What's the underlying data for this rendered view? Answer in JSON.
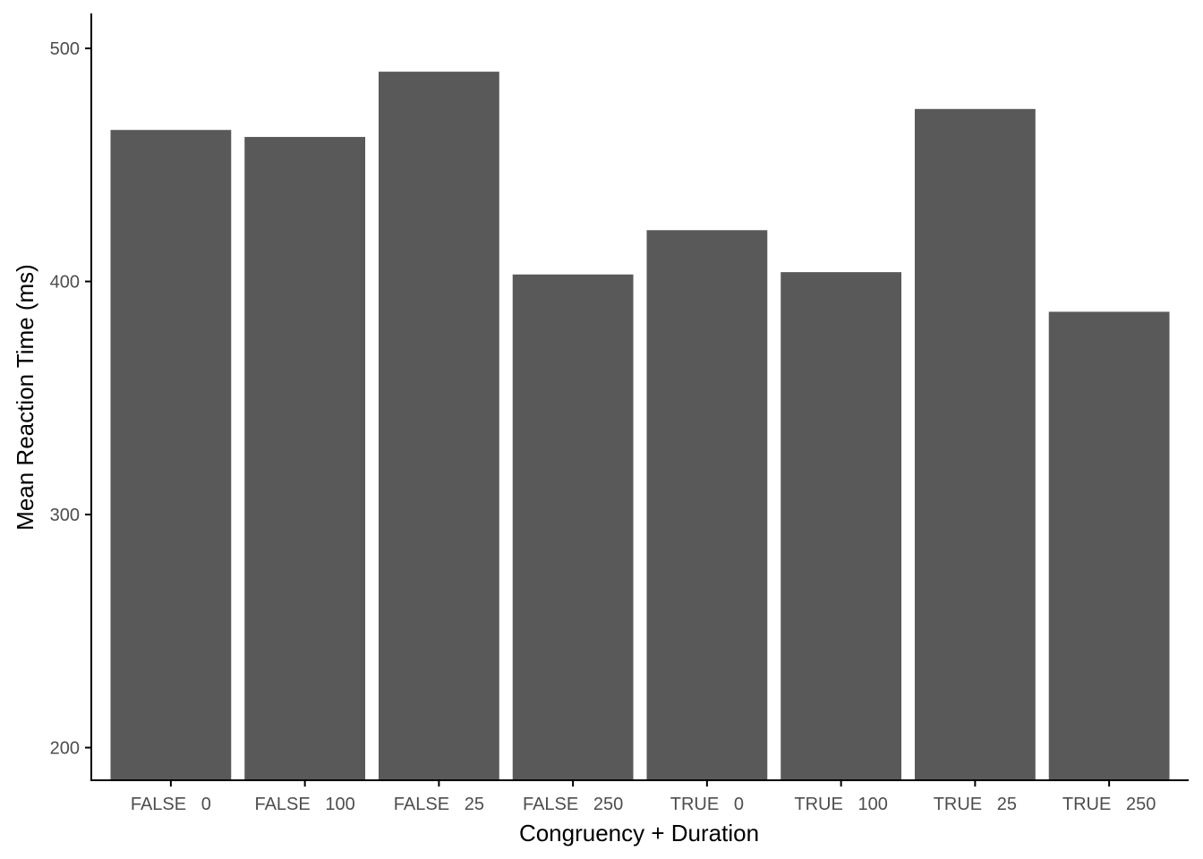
{
  "chart_data": {
    "type": "bar",
    "title": "",
    "xlabel": "Congruency + Duration",
    "ylabel": "Mean Reaction Time (ms)",
    "categories": [
      "FALSE   0",
      "FALSE   100",
      "FALSE   25",
      "FALSE   250",
      "TRUE   0",
      "TRUE   100",
      "TRUE   25",
      "TRUE   250"
    ],
    "values": [
      465,
      462,
      490,
      403,
      422,
      404,
      474,
      387
    ],
    "ylim": [
      186,
      515
    ],
    "yticks": [
      200,
      300,
      400,
      500
    ],
    "grid": false,
    "legend": "none",
    "bar_color": "#595959",
    "axis_color": "#000000",
    "tick_label_color": "#4d4d4d"
  }
}
